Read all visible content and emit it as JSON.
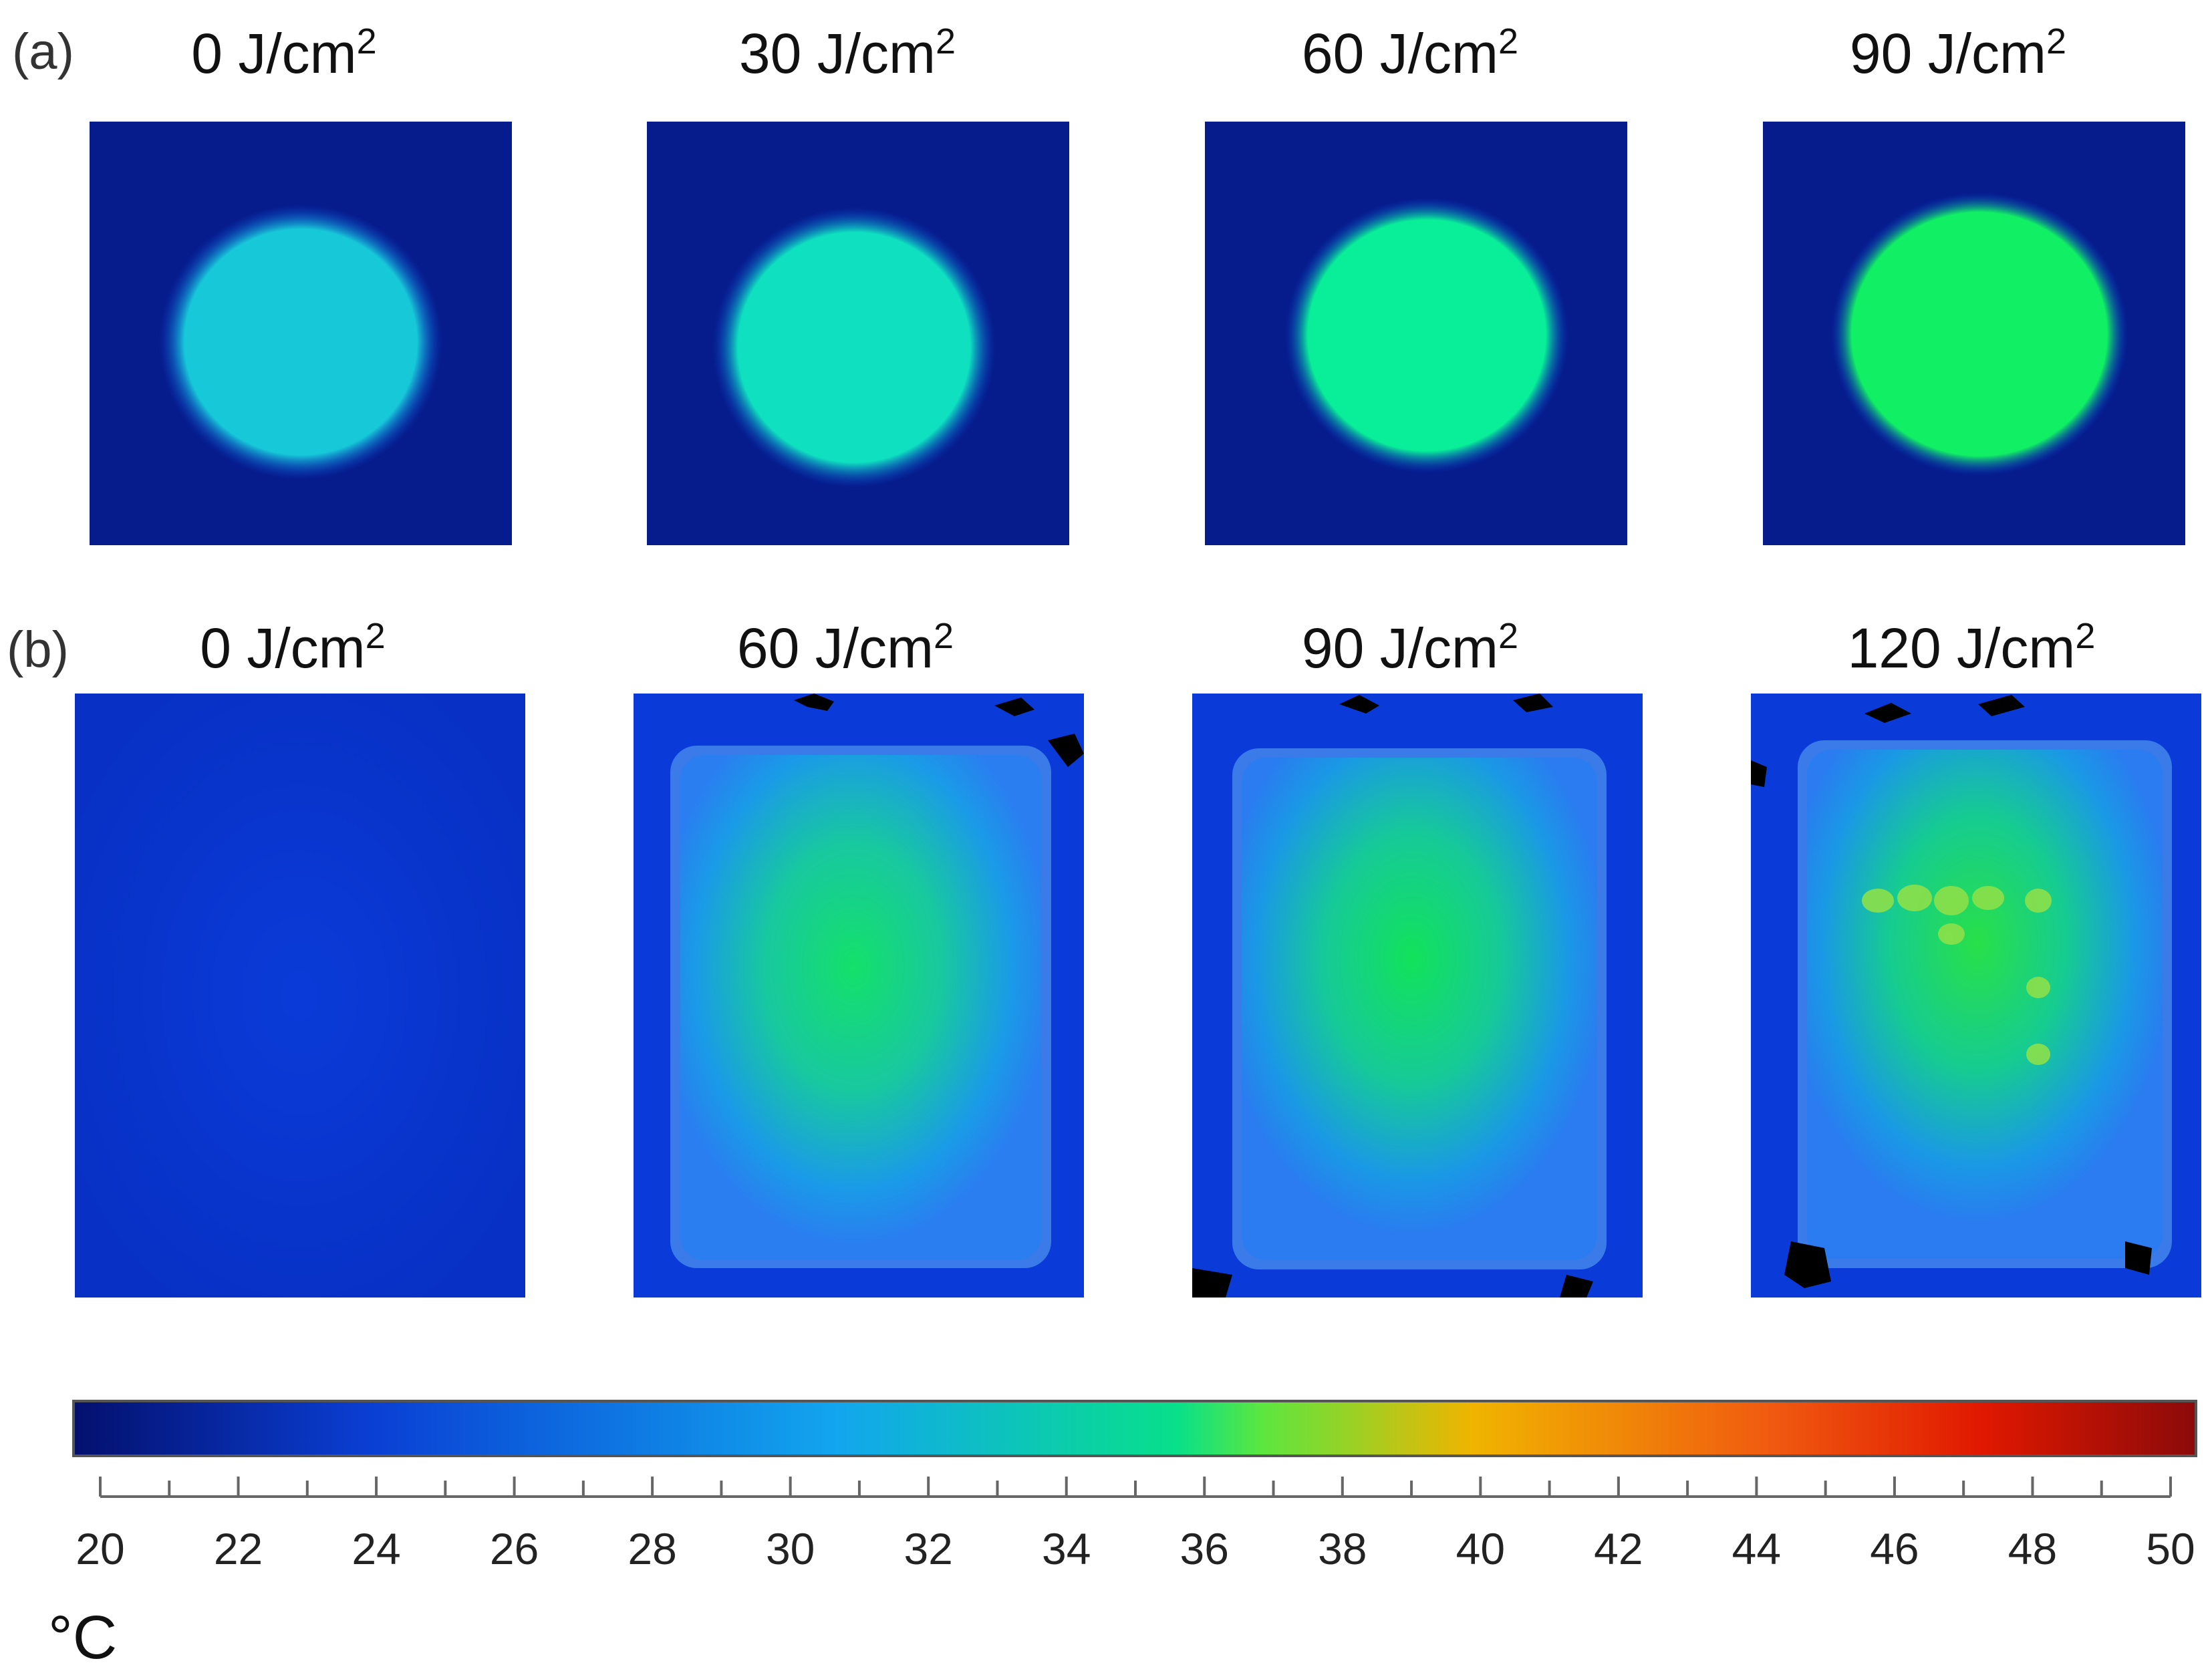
{
  "panels": {
    "a": {
      "tag": "(a)",
      "images": [
        {
          "label_num": "0",
          "label_unit": " J/cm",
          "label_exp": "2",
          "fill": "#17c9d8"
        },
        {
          "label_num": "30",
          "label_unit": " J/cm",
          "label_exp": "2",
          "fill": "#0fe0c0"
        },
        {
          "label_num": "60",
          "label_unit": " J/cm",
          "label_exp": "2",
          "fill": "#09ee98"
        },
        {
          "label_num": "90",
          "label_unit": " J/cm",
          "label_exp": "2",
          "fill": "#11ef64"
        }
      ]
    },
    "b": {
      "tag": "(b)",
      "images": [
        {
          "label_num": "0",
          "label_unit": " J/cm",
          "label_exp": "2"
        },
        {
          "label_num": "60",
          "label_unit": " J/cm",
          "label_exp": "2"
        },
        {
          "label_num": "90",
          "label_unit": " J/cm",
          "label_exp": "2"
        },
        {
          "label_num": "120",
          "label_unit": " J/cm",
          "label_exp": "2"
        }
      ]
    }
  },
  "colorbar": {
    "ticks": [
      "20",
      "22",
      "24",
      "26",
      "28",
      "30",
      "32",
      "34",
      "36",
      "38",
      "40",
      "42",
      "44",
      "46",
      "48",
      "50"
    ],
    "min": 20,
    "max": 50,
    "unit": "°C",
    "colors": {
      "background": "#061c8c",
      "stop0": "#04106e",
      "stop1": "#0a3fd4",
      "stop2": "#12a6ee",
      "stop3": "#08e08a",
      "stop4": "#5ce640",
      "stop5": "#f0b400",
      "stop6": "#f05a10",
      "stop7": "#e01800",
      "stop8": "#8c0a0a"
    }
  }
}
